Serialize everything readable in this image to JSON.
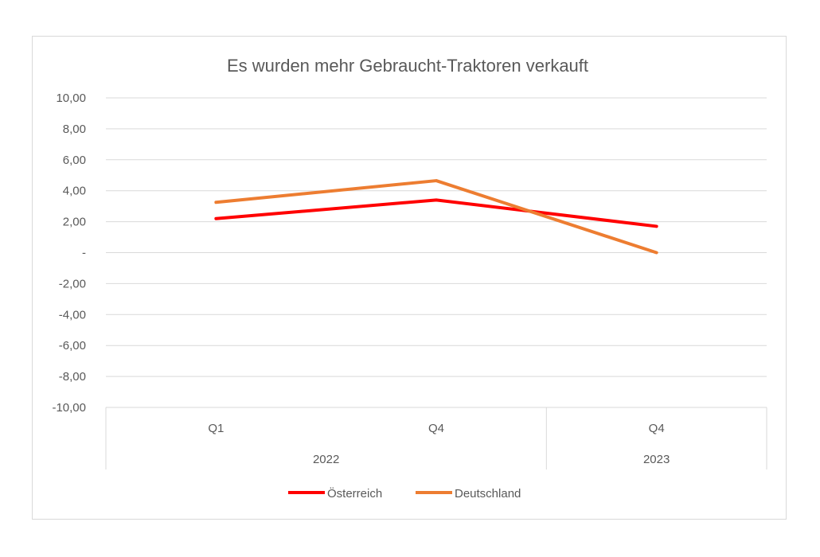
{
  "chart_data": {
    "type": "line",
    "title": "Es wurden mehr Gebraucht-Traktoren verkauft",
    "xlabel": "",
    "ylabel": "",
    "ylim": [
      -10,
      10
    ],
    "y_ticks": [
      {
        "value": 10,
        "label": "10,00"
      },
      {
        "value": 8,
        "label": "8,00"
      },
      {
        "value": 6,
        "label": "6,00"
      },
      {
        "value": 4,
        "label": "4,00"
      },
      {
        "value": 2,
        "label": "2,00"
      },
      {
        "value": 0,
        "label": "-"
      },
      {
        "value": -2,
        "label": "-2,00"
      },
      {
        "value": -4,
        "label": "-4,00"
      },
      {
        "value": -6,
        "label": "-6,00"
      },
      {
        "value": -8,
        "label": "-8,00"
      },
      {
        "value": -10,
        "label": "-10,00"
      }
    ],
    "categories": [
      "Q1",
      "Q4",
      "Q4"
    ],
    "category_groups": [
      {
        "label": "2022",
        "span": 2
      },
      {
        "label": "2023",
        "span": 1
      }
    ],
    "grid": true,
    "legend_position": "bottom",
    "series": [
      {
        "name": "Österreich",
        "color": "#ff0000",
        "values": [
          2.2,
          3.4,
          1.7
        ]
      },
      {
        "name": "Deutschland",
        "color": "#ed7d31",
        "values": [
          3.25,
          4.65,
          0.0
        ]
      }
    ]
  }
}
